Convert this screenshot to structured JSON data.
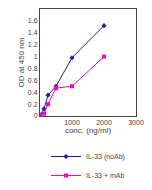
{
  "chart_data": {
    "type": "line",
    "x_label": "conc. (ng/ml)",
    "y_label": "OD at 450 nm",
    "x": [
      0,
      125,
      250,
      500,
      1000,
      2000
    ],
    "series": [
      {
        "name": "IL-33 (noAb)",
        "color": "#2020AA",
        "marker": "diamond",
        "values": [
          0.02,
          0.12,
          0.35,
          0.5,
          0.98,
          1.52
        ]
      },
      {
        "name": "IL-33 + mAb",
        "color": "#FF00CC",
        "marker": "square",
        "values": [
          0.01,
          0.04,
          0.2,
          0.47,
          0.5,
          1.0
        ]
      }
    ],
    "xlim": [
      0,
      3000
    ],
    "xticks": [
      1000,
      2000,
      3000
    ],
    "ylim": [
      0,
      1.8
    ],
    "yticks": [
      0,
      0.2,
      0.4,
      0.6,
      0.8,
      1,
      1.2,
      1.4,
      1.6
    ],
    "grid": false,
    "legend": "bottom"
  }
}
